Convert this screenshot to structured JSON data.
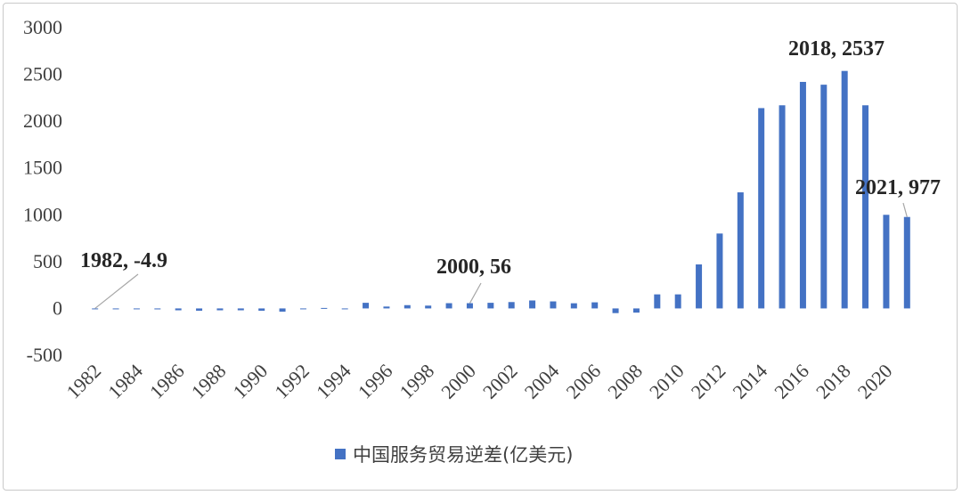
{
  "chart_data": {
    "type": "bar",
    "categories": [
      "1982",
      "1983",
      "1984",
      "1985",
      "1986",
      "1987",
      "1988",
      "1989",
      "1990",
      "1991",
      "1992",
      "1993",
      "1994",
      "1995",
      "1996",
      "1997",
      "1998",
      "1999",
      "2000",
      "2001",
      "2002",
      "2003",
      "2004",
      "2005",
      "2006",
      "2007",
      "2008",
      "2009",
      "2010",
      "2011",
      "2012",
      "2013",
      "2014",
      "2015",
      "2016",
      "2017",
      "2018",
      "2019",
      "2020",
      "2021"
    ],
    "x_tick_labels": [
      "1982",
      "1984",
      "1986",
      "1988",
      "1990",
      "1992",
      "1994",
      "1996",
      "1998",
      "2000",
      "2002",
      "2004",
      "2006",
      "2008",
      "2010",
      "2012",
      "2014",
      "2016",
      "2018",
      "2020"
    ],
    "series": [
      {
        "name": "中国服务贸易逆差(亿美元)",
        "color": "#4472C4",
        "values": [
          -4.9,
          -8,
          -5,
          -10,
          -20,
          -25,
          -20,
          -20,
          -25,
          -35,
          -3,
          5,
          -5,
          60,
          20,
          35,
          30,
          56,
          56,
          60,
          68,
          85,
          75,
          55,
          65,
          -50,
          -45,
          150,
          150,
          470,
          800,
          1240,
          2140,
          2170,
          2420,
          2390,
          2537,
          2170,
          1000,
          977
        ]
      }
    ],
    "ylim": [
      -500,
      3000
    ],
    "y_ticks": [
      "-500",
      "0",
      "500",
      "1000",
      "1500",
      "2000",
      "2500",
      "3000"
    ],
    "y_tick_values": [
      -500,
      0,
      500,
      1000,
      1500,
      2000,
      2500,
      3000
    ],
    "grid": false,
    "legend_position": "bottom",
    "annotations": [
      {
        "text": "1982, -4.9",
        "category": "1982"
      },
      {
        "text": "2000, 56",
        "category": "2000"
      },
      {
        "text": "2018, 2537",
        "category": "2018"
      },
      {
        "text": "2021, 977",
        "category": "2021"
      }
    ],
    "title": "",
    "xlabel": "",
    "ylabel": ""
  }
}
